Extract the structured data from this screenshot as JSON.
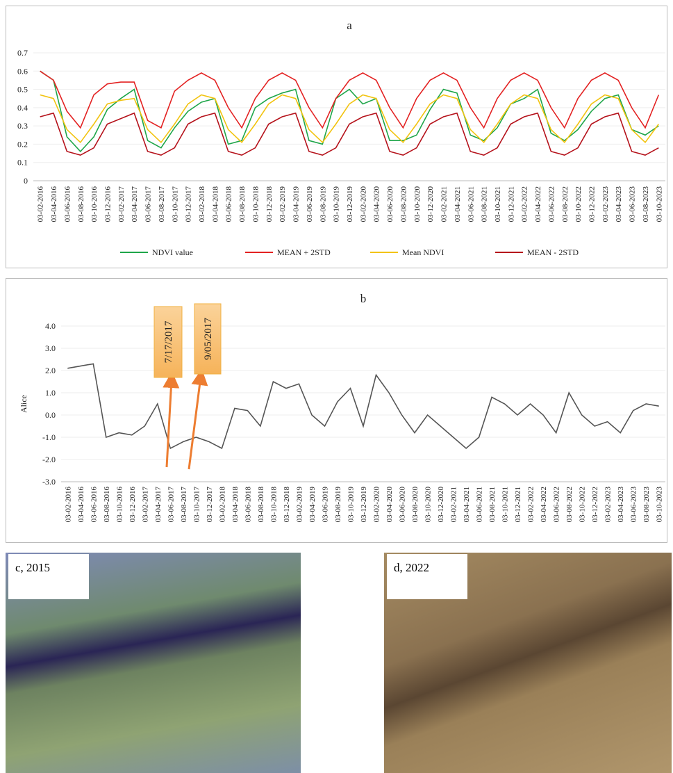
{
  "chart_data": [
    {
      "type": "line",
      "title": "a",
      "categories": [
        "03-02-2016",
        "03-04-2016",
        "03-06-2016",
        "03-08-2016",
        "03-10-2016",
        "03-12-2016",
        "03-02-2017",
        "03-04-2017",
        "03-06-2017",
        "03-08-2017",
        "03-10-2017",
        "03-12-2017",
        "03-02-2018",
        "03-04-2018",
        "03-06-2018",
        "03-08-2018",
        "03-10-2018",
        "03-12-2018",
        "03-02-2019",
        "03-04-2019",
        "03-06-2019",
        "03-08-2019",
        "03-10-2019",
        "03-12-2019",
        "03-02-2020",
        "03-04-2020",
        "03-06-2020",
        "03-08-2020",
        "03-10-2020",
        "03-12-2020",
        "03-02-2021",
        "03-04-2021",
        "03-06-2021",
        "03-08-2021",
        "03-10-2021",
        "03-12-2021",
        "03-02-2022",
        "03-04-2022",
        "03-06-2022",
        "03-08-2022",
        "03-10-2022",
        "03-12-2022",
        "03-02-2023",
        "03-04-2023",
        "03-06-2023",
        "03-08-2023",
        "03-10-2023"
      ],
      "series": [
        {
          "name": "NDVI value",
          "color": "#1fa64a",
          "values": [
            0.6,
            0.55,
            0.24,
            0.16,
            0.24,
            0.39,
            0.45,
            0.5,
            0.22,
            0.18,
            0.29,
            0.38,
            0.43,
            0.45,
            0.2,
            0.22,
            0.4,
            0.45,
            0.48,
            0.5,
            0.22,
            0.2,
            0.45,
            0.5,
            0.42,
            0.45,
            0.22,
            0.22,
            0.25,
            0.39,
            0.5,
            0.48,
            0.25,
            0.22,
            0.29,
            0.42,
            0.45,
            0.5,
            0.26,
            0.22,
            0.28,
            0.38,
            0.45,
            0.47,
            0.28,
            0.25,
            0.3
          ]
        },
        {
          "name": "MEAN + 2STD",
          "color": "#e32222",
          "values": [
            0.6,
            0.55,
            0.38,
            0.29,
            0.47,
            0.53,
            0.54,
            0.54,
            0.33,
            0.29,
            0.49,
            0.55,
            0.59,
            0.55,
            0.4,
            0.29,
            0.45,
            0.55,
            0.59,
            0.55,
            0.4,
            0.29,
            0.45,
            0.55,
            0.59,
            0.55,
            0.4,
            0.29,
            0.45,
            0.55,
            0.59,
            0.55,
            0.4,
            0.29,
            0.45,
            0.55,
            0.59,
            0.55,
            0.4,
            0.29,
            0.45,
            0.55,
            0.59,
            0.55,
            0.4,
            0.29,
            0.47
          ]
        },
        {
          "name": "Mean NDVI",
          "color": "#f2c30f",
          "values": [
            0.47,
            0.45,
            0.28,
            0.21,
            0.31,
            0.42,
            0.44,
            0.45,
            0.28,
            0.21,
            0.31,
            0.42,
            0.47,
            0.45,
            0.28,
            0.21,
            0.31,
            0.42,
            0.47,
            0.45,
            0.28,
            0.21,
            0.31,
            0.42,
            0.47,
            0.45,
            0.28,
            0.21,
            0.31,
            0.42,
            0.47,
            0.45,
            0.28,
            0.21,
            0.31,
            0.42,
            0.47,
            0.45,
            0.28,
            0.21,
            0.31,
            0.42,
            0.47,
            0.45,
            0.28,
            0.21,
            0.31
          ]
        },
        {
          "name": "MEAN - 2STD",
          "color": "#b5121b",
          "values": [
            0.35,
            0.37,
            0.16,
            0.14,
            0.18,
            0.31,
            0.34,
            0.37,
            0.16,
            0.14,
            0.18,
            0.31,
            0.35,
            0.37,
            0.16,
            0.14,
            0.18,
            0.31,
            0.35,
            0.37,
            0.16,
            0.14,
            0.18,
            0.31,
            0.35,
            0.37,
            0.16,
            0.14,
            0.18,
            0.31,
            0.35,
            0.37,
            0.16,
            0.14,
            0.18,
            0.31,
            0.35,
            0.37,
            0.16,
            0.14,
            0.18,
            0.31,
            0.35,
            0.37,
            0.16,
            0.14,
            0.18
          ]
        }
      ],
      "ylim": [
        0,
        0.7
      ],
      "yticks": [
        0,
        0.1,
        0.2,
        0.3,
        0.4,
        0.5,
        0.6,
        0.7
      ],
      "legend": "bottom"
    },
    {
      "type": "line",
      "title": "b",
      "y_label": "Alice",
      "categories": [
        "03-02-2016",
        "03-04-2016",
        "03-06-2016",
        "03-08-2016",
        "03-10-2016",
        "03-12-2016",
        "03-02-2017",
        "03-04-2017",
        "03-06-2017",
        "03-08-2017",
        "03-10-2017",
        "03-12-2017",
        "03-02-2018",
        "03-04-2018",
        "03-06-2018",
        "03-08-2018",
        "03-10-2018",
        "03-12-2018",
        "03-02-2019",
        "03-04-2019",
        "03-06-2019",
        "03-08-2019",
        "03-10-2019",
        "03-12-2019",
        "03-02-2020",
        "03-04-2020",
        "03-06-2020",
        "03-08-2020",
        "03-10-2020",
        "03-12-2020",
        "03-02-2021",
        "03-04-2021",
        "03-06-2021",
        "03-08-2021",
        "03-10-2021",
        "03-12-2021",
        "03-02-2022",
        "03-04-2022",
        "03-06-2022",
        "03-08-2022",
        "03-10-2022",
        "03-12-2022",
        "03-02-2023",
        "03-04-2023",
        "03-06-2023",
        "03-08-2023",
        "03-10-2023"
      ],
      "series": [
        {
          "name": "Alice",
          "color": "#555555",
          "values": [
            2.1,
            2.2,
            2.3,
            -1.0,
            -0.8,
            -0.9,
            -0.5,
            0.5,
            -1.5,
            -1.2,
            -1.0,
            -1.2,
            -1.5,
            0.3,
            0.2,
            -0.5,
            1.5,
            1.2,
            1.4,
            0.0,
            -0.5,
            0.6,
            1.2,
            -0.5,
            1.8,
            1.0,
            0.0,
            -0.8,
            0.0,
            -0.5,
            -1.0,
            -1.5,
            -1.0,
            0.8,
            0.5,
            0.0,
            0.5,
            0.0,
            -0.8,
            1.0,
            0.0,
            -0.5,
            -0.3,
            -0.8,
            0.2,
            0.5,
            0.4
          ]
        }
      ],
      "ylim": [
        -3,
        4
      ],
      "yticks": [
        {
          "value": -3,
          "label": "-3.0"
        },
        {
          "value": -2,
          "label": "-2.0"
        },
        {
          "value": -1,
          "label": "-1.0"
        },
        {
          "value": 0,
          "label": "0.0"
        },
        {
          "value": 1,
          "label": "1.0"
        },
        {
          "value": 2,
          "label": "2.0"
        },
        {
          "value": 3,
          "label": "3.0"
        },
        {
          "value": 4,
          "label": "4.0"
        }
      ],
      "annotations": [
        {
          "text": "7/17/2017"
        },
        {
          "text": "9/05/2017"
        }
      ]
    }
  ],
  "photos": [
    {
      "label": "c, 2015"
    },
    {
      "label": "d, 2022"
    }
  ]
}
